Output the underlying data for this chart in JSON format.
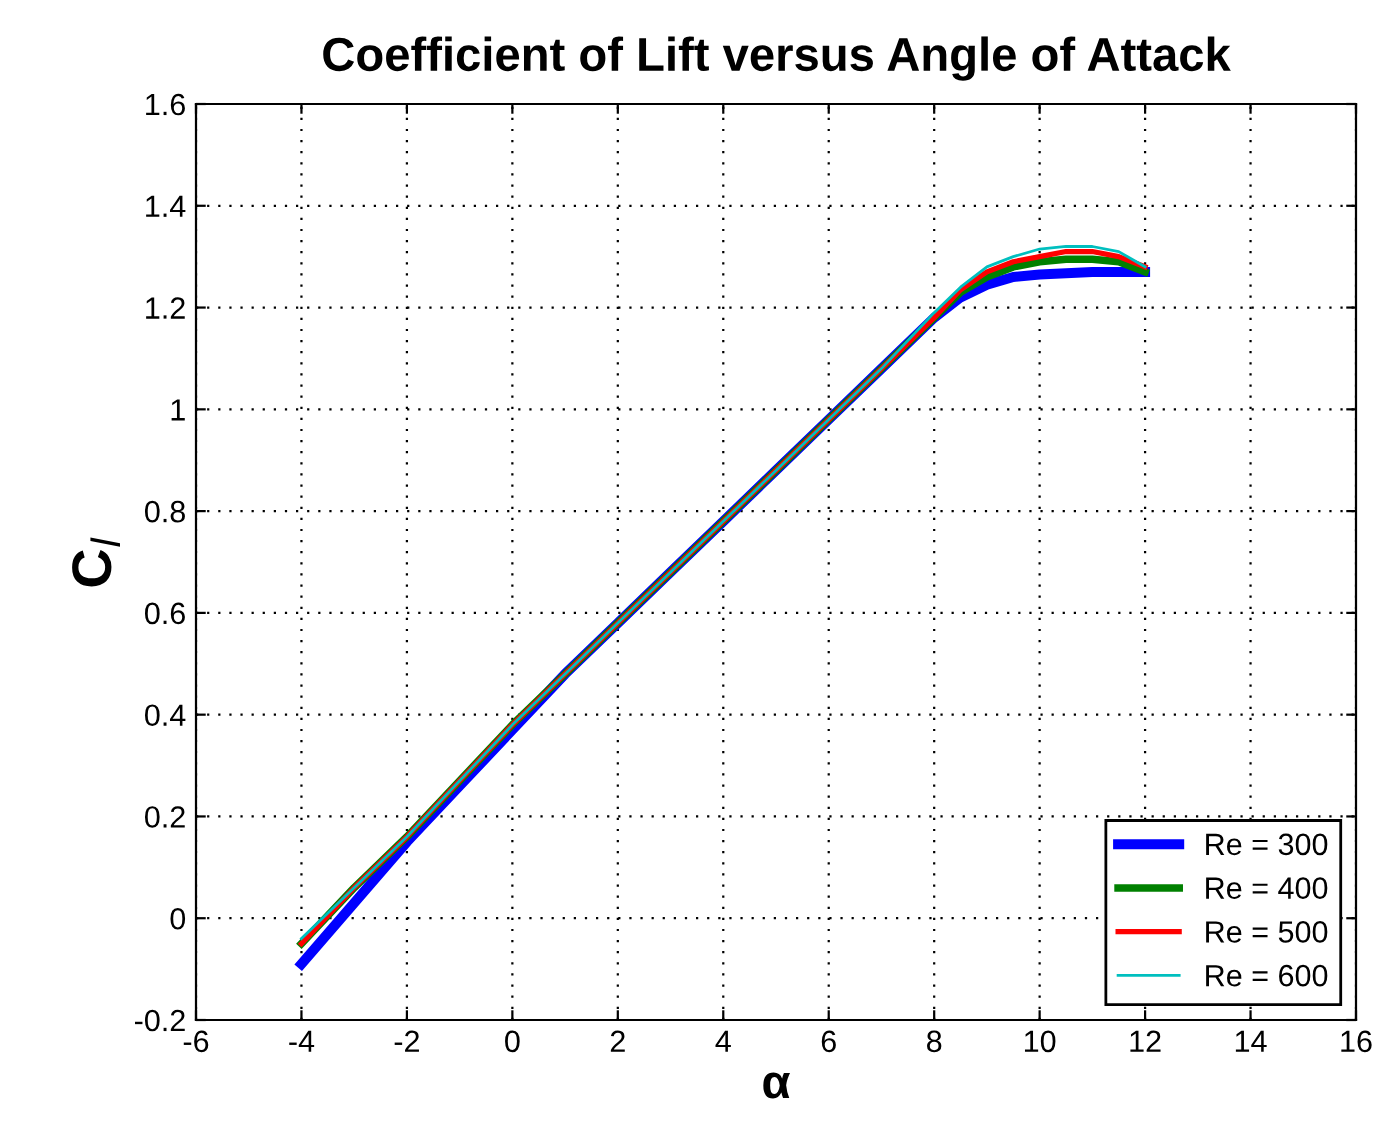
{
  "chart_data": {
    "type": "line",
    "title": "Coefficient of Lift versus Angle of Attack",
    "xlabel": "α",
    "ylabel": "C$_{l}$",
    "xlim": [
      -6,
      16
    ],
    "xticks": [
      -6,
      -4,
      -2,
      0,
      2,
      4,
      6,
      8,
      10,
      12,
      14,
      16
    ],
    "ylim": [
      -0.2,
      1.6
    ],
    "yticks": [
      -0.2,
      0,
      0.2,
      0.4,
      0.6,
      0.8,
      1,
      1.2,
      1.4,
      1.6
    ],
    "grid": true,
    "legend": "bottom right",
    "line_style": "solid",
    "series": [
      {
        "name": "Re = 300",
        "color": "#0000ff",
        "x": [
          -4,
          -3,
          -2,
          -1,
          0,
          1,
          2,
          3,
          4,
          5,
          6,
          7,
          8,
          8.5,
          9,
          9.5,
          10,
          11,
          12
        ],
        "values": [
          -0.09,
          0.03,
          0.15,
          0.26,
          0.37,
          0.48,
          0.58,
          0.68,
          0.78,
          0.88,
          0.98,
          1.08,
          1.18,
          1.22,
          1.245,
          1.26,
          1.265,
          1.27,
          1.27
        ]
      },
      {
        "name": "Re = 400",
        "color": "#008000",
        "x": [
          -4,
          -3,
          -2,
          -1,
          0,
          1,
          2,
          3,
          4,
          5,
          6,
          7,
          8,
          8.5,
          9,
          9.5,
          10,
          10.5,
          11,
          11.5,
          12
        ],
        "values": [
          -0.05,
          0.06,
          0.16,
          0.27,
          0.38,
          0.48,
          0.58,
          0.68,
          0.78,
          0.88,
          0.98,
          1.08,
          1.18,
          1.23,
          1.26,
          1.28,
          1.29,
          1.295,
          1.295,
          1.29,
          1.27
        ]
      },
      {
        "name": "Re = 500",
        "color": "#ff0000",
        "x": [
          -4,
          -3,
          -2,
          -1,
          0,
          1,
          2,
          3,
          4,
          5,
          6,
          7,
          8,
          8.5,
          9,
          9.5,
          10,
          10.5,
          11,
          11.5,
          12
        ],
        "values": [
          -0.05,
          0.06,
          0.16,
          0.27,
          0.38,
          0.48,
          0.58,
          0.68,
          0.78,
          0.88,
          0.98,
          1.08,
          1.18,
          1.235,
          1.27,
          1.29,
          1.3,
          1.31,
          1.31,
          1.3,
          1.28
        ]
      },
      {
        "name": "Re = 600",
        "color": "#00bfbf",
        "x": [
          -4,
          -3,
          -2,
          -1,
          0,
          1,
          2,
          3,
          4,
          5,
          6,
          7,
          8,
          8.5,
          9,
          9.5,
          10,
          10.5,
          11,
          11.5,
          12
        ],
        "values": [
          -0.04,
          0.06,
          0.16,
          0.27,
          0.38,
          0.48,
          0.58,
          0.68,
          0.78,
          0.88,
          0.98,
          1.08,
          1.19,
          1.24,
          1.28,
          1.3,
          1.315,
          1.32,
          1.32,
          1.31,
          1.28
        ]
      }
    ]
  }
}
